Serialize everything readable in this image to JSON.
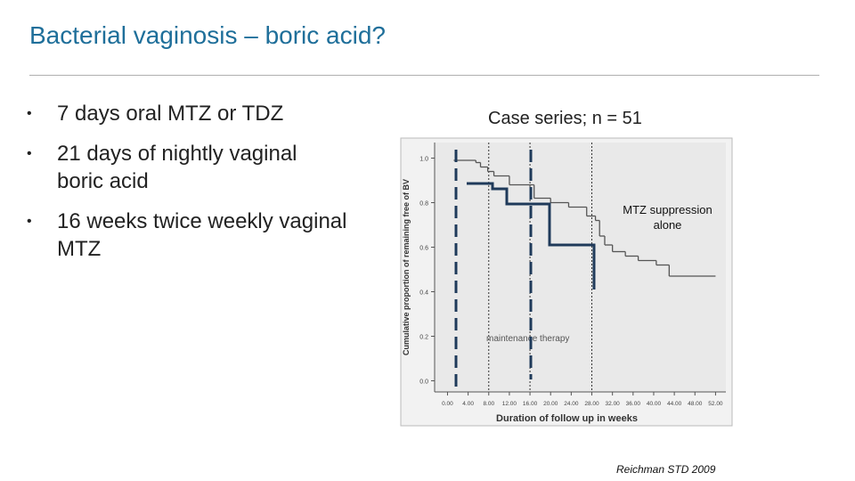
{
  "title": "Bacterial vaginosis – boric acid?",
  "bullets": [
    "7 days oral MTZ or TDZ",
    "21 days of nightly vaginal boric acid",
    "16 weeks twice weekly vaginal MTZ"
  ],
  "caption": "Case series; n = 51",
  "annotation": "MTZ suppression alone",
  "citation": "Reichman STD 2009",
  "chart_data": {
    "type": "step",
    "x_label": "Duration of follow up in weeks",
    "y_label": "Cumulative proportion of remaining free of BV",
    "region_label": "maintenance therapy",
    "xlim": [
      -2.5,
      54
    ],
    "ylim": [
      -0.05,
      1.07
    ],
    "xticks": [
      {
        "value": 0,
        "label": "0.00"
      },
      {
        "value": 4,
        "label": "4.00"
      },
      {
        "value": 8,
        "label": "8.00"
      },
      {
        "value": 12,
        "label": "12.00"
      },
      {
        "value": 16,
        "label": "16.00"
      },
      {
        "value": 20,
        "label": "20.00"
      },
      {
        "value": 24,
        "label": "24.00"
      },
      {
        "value": 28,
        "label": "28.00"
      },
      {
        "value": 32,
        "label": "32.00"
      },
      {
        "value": 36,
        "label": "36.00"
      },
      {
        "value": 40,
        "label": "40.00"
      },
      {
        "value": 44,
        "label": "44.00"
      },
      {
        "value": 48,
        "label": "48.00"
      },
      {
        "value": 52,
        "label": "52.00"
      }
    ],
    "yticks": [
      {
        "value": 0,
        "label": "0.0"
      },
      0.2,
      0.4,
      0.6,
      0.8,
      {
        "value": 1,
        "label": "1.0"
      }
    ],
    "reference_lines": [
      8,
      16,
      28
    ],
    "color": "#555555",
    "x": [
      1.2,
      5.5,
      6.4,
      7.8,
      9,
      12,
      16.8,
      20,
      23.5,
      27,
      28.7,
      29.5,
      30.5,
      32,
      34.5,
      37,
      40.5,
      43,
      52
    ],
    "values": [
      0.99,
      0.98,
      0.96,
      0.94,
      0.92,
      0.88,
      0.82,
      0.8,
      0.78,
      0.74,
      0.72,
      0.65,
      0.61,
      0.58,
      0.56,
      0.54,
      0.52,
      0.47,
      0.47
    ]
  }
}
